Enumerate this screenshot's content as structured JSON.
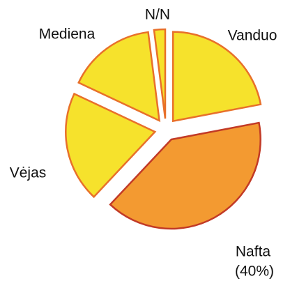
{
  "chart_data": {
    "type": "pie",
    "categories": [
      "Vanduo",
      "Nafta",
      "Vėjas",
      "Mediena",
      "N/N"
    ],
    "values": [
      22,
      40,
      20,
      16,
      2
    ],
    "value_labels": [
      null,
      "(40%)",
      null,
      null,
      null
    ],
    "colors": [
      "#f6e22c",
      "#f39a31",
      "#f6e22c",
      "#f6e22c",
      "#f6e22c"
    ],
    "edge_colors": [
      "#e8702a",
      "#c23a26",
      "#e8702a",
      "#e8702a",
      "#e8702a"
    ],
    "exploded": true
  }
}
